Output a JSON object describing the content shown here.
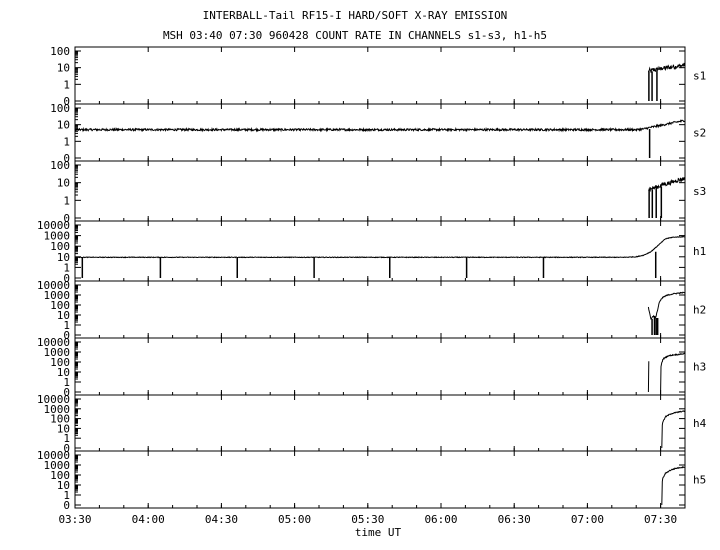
{
  "chart_data": {
    "type": "line",
    "title": "INTERBALL-Tail RF15-I HARD/SOFT X-RAY EMISSION",
    "subtitle": "MSH 03:40 07:30 960428  COUNT RATE IN CHANNELS s1-s3, h1-h5",
    "xlabel": "time UT",
    "x_tick_labels": [
      "03:30",
      "04:00",
      "04:30",
      "05:00",
      "05:30",
      "06:00",
      "06:30",
      "07:00",
      "07:30"
    ],
    "x_tick_minutes": [
      210,
      240,
      270,
      300,
      330,
      360,
      390,
      420,
      450
    ],
    "xlim": [
      "03:30",
      "07:40"
    ],
    "x_unit": "minutes of day (UT)",
    "grid": false,
    "panels": [
      {
        "label": "s1",
        "y_tick_labels": [
          "100",
          "10",
          "1",
          "0"
        ],
        "ylim": [
          0,
          100
        ],
        "series": {
          "segments": [
            {
              "x": [
                445.0,
                445.5,
                446.0,
                447.0,
                448.0,
                449.0,
                450.0,
                451.0,
                452.0,
                453.0,
                454.0,
                455.0,
                456.0,
                457.0,
                458.0,
                459.0,
                460.0
              ],
              "y": [
                6,
                7,
                6,
                8,
                7,
                9,
                8,
                10,
                9,
                11,
                10,
                12,
                11,
                13,
                12,
                14,
                15
              ]
            }
          ],
          "noise": 0.25,
          "dropouts": [
            445.2,
            446.5,
            448.5
          ]
        }
      },
      {
        "label": "s2",
        "y_tick_labels": [
          "100",
          "10",
          "1",
          "0"
        ],
        "ylim": [
          0,
          100
        ],
        "series": {
          "segments": [
            {
              "x": [
                210,
                300,
                400,
                440,
                443,
                446,
                450,
                455,
                460
              ],
              "y": [
                5,
                5,
                5,
                5,
                5.5,
                7,
                9,
                13,
                18
              ]
            }
          ],
          "noise": 0.12,
          "dropouts": [
            445.5
          ]
        }
      },
      {
        "label": "s3",
        "y_tick_labels": [
          "100",
          "10",
          "1",
          "0"
        ],
        "ylim": [
          0,
          100
        ],
        "series": {
          "segments": [
            {
              "x": [
                445.0,
                447.0,
                449.0,
                451.0,
                453.0,
                455.0,
                457.0,
                459.0,
                460.0
              ],
              "y": [
                4,
                5,
                6,
                8,
                9,
                11,
                14,
                16,
                18
              ]
            }
          ],
          "noise": 0.25,
          "dropouts": [
            445.3,
            446.6,
            448.2,
            450.3
          ]
        }
      },
      {
        "label": "h1",
        "y_tick_labels": [
          "10000",
          "1000",
          "100",
          "10",
          "1",
          "0"
        ],
        "ylim": [
          0,
          10000
        ],
        "series": {
          "segments": [
            {
              "x": [
                210,
                300,
                400,
                435,
                440,
                443,
                446,
                449,
                452,
                455,
                460
              ],
              "y": [
                9,
                9,
                9,
                9,
                10,
                14,
                30,
                120,
                500,
                700,
                800
              ]
            }
          ],
          "noise": 0.06,
          "dropouts": [
            213,
            245,
            276.5,
            308,
            339,
            370.5,
            402,
            448
          ]
        }
      },
      {
        "label": "h2",
        "y_tick_labels": [
          "10000",
          "1000",
          "100",
          "10",
          "1",
          "0"
        ],
        "ylim": [
          0,
          10000
        ],
        "series": {
          "segments": [
            {
              "x": [
                445,
                446,
                447,
                448,
                449.5,
                451,
                453,
                455,
                458,
                460
              ],
              "y": [
                60,
                4,
                8,
                5,
                200,
                600,
                1000,
                1300,
                1600,
                1800
              ]
            }
          ],
          "noise": 0.12,
          "dropouts": [
            446.5,
            447.5,
            448.2,
            448.8
          ]
        }
      },
      {
        "label": "h3",
        "y_tick_labels": [
          "10000",
          "1000",
          "100",
          "10",
          "1",
          "0"
        ],
        "ylim": [
          0,
          10000
        ],
        "series": {
          "segments": [
            {
              "x": [
                445.0,
                445.2
              ],
              "y": [
                0,
                120
              ]
            },
            {
              "x": [
                450.0,
                450.3,
                451,
                453,
                455,
                458,
                460
              ],
              "y": [
                0,
                60,
                200,
                400,
                500,
                600,
                700
              ]
            }
          ],
          "noise": 0.1,
          "dropouts": []
        }
      },
      {
        "label": "h4",
        "y_tick_labels": [
          "10000",
          "1000",
          "100",
          "10",
          "1",
          "0"
        ],
        "ylim": [
          0,
          10000
        ],
        "series": {
          "segments": [
            {
              "x": [
                450.5,
                450.8,
                452,
                454,
                456,
                458,
                460
              ],
              "y": [
                0,
                40,
                150,
                300,
                400,
                500,
                600
              ]
            }
          ],
          "noise": 0.1,
          "dropouts": []
        }
      },
      {
        "label": "h5",
        "y_tick_labels": [
          "10000",
          "1000",
          "100",
          "10",
          "1",
          "0"
        ],
        "ylim": [
          0,
          10000
        ],
        "series": {
          "segments": [
            {
              "x": [
                450.5,
                450.8,
                452,
                454,
                456,
                458,
                460
              ],
              "y": [
                0,
                40,
                150,
                300,
                450,
                550,
                650
              ]
            }
          ],
          "noise": 0.1,
          "dropouts": []
        }
      }
    ]
  }
}
